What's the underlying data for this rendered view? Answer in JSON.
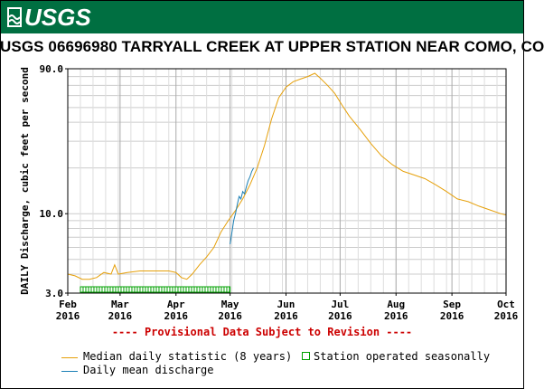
{
  "header": {
    "logo_text": "USGS",
    "brand_color": "#006f41",
    "title": "USGS 06696980 TARRYALL CREEK AT UPPER STATION NEAR COMO, CO"
  },
  "provisional_note": "---- Provisional Data Subject to Revision ----",
  "legend": {
    "median_label": "Median daily statistic (8 years)",
    "median_color": "#e6a00a",
    "daily_label": "Daily mean discharge",
    "daily_color": "#1a7fb5",
    "seasonal_label": "Station operated seasonally",
    "seasonal_color": "#00a000"
  },
  "chart_data": {
    "type": "line",
    "title": "USGS 06696980 TARRYALL CREEK AT UPPER STATION NEAR COMO, CO",
    "ylabel": "DAILY Discharge, cubic feet per second",
    "xlabel": "",
    "y_scale": "log",
    "ylim": [
      3.0,
      90.0
    ],
    "y_ticks": [
      "3.0",
      "10.0",
      "90.0"
    ],
    "x_ticks": [
      {
        "month": "Feb",
        "year": "2016",
        "date": "2016-02-01"
      },
      {
        "month": "Mar",
        "year": "2016",
        "date": "2016-03-01"
      },
      {
        "month": "Apr",
        "year": "2016",
        "date": "2016-04-01"
      },
      {
        "month": "May",
        "year": "2016",
        "date": "2016-05-01"
      },
      {
        "month": "Jun",
        "year": "2016",
        "date": "2016-06-01"
      },
      {
        "month": "Jul",
        "year": "2016",
        "date": "2016-07-01"
      },
      {
        "month": "Aug",
        "year": "2016",
        "date": "2016-08-01"
      },
      {
        "month": "Sep",
        "year": "2016",
        "date": "2016-09-01"
      },
      {
        "month": "Oct",
        "year": "2016",
        "date": "2016-10-01"
      }
    ],
    "xlim": [
      "2016-02-01",
      "2016-10-01"
    ],
    "grid": true,
    "series": [
      {
        "name": "Median daily statistic (8 years)",
        "color": "#e6a00a",
        "points": [
          [
            "2016-02-01",
            4.0
          ],
          [
            "2016-02-05",
            3.9
          ],
          [
            "2016-02-09",
            3.7
          ],
          [
            "2016-02-13",
            3.7
          ],
          [
            "2016-02-17",
            3.8
          ],
          [
            "2016-02-21",
            4.1
          ],
          [
            "2016-02-25",
            4.0
          ],
          [
            "2016-02-27",
            4.6
          ],
          [
            "2016-02-29",
            4.0
          ],
          [
            "2016-03-05",
            4.1
          ],
          [
            "2016-03-12",
            4.2
          ],
          [
            "2016-03-20",
            4.2
          ],
          [
            "2016-03-28",
            4.2
          ],
          [
            "2016-04-01",
            4.1
          ],
          [
            "2016-04-04",
            3.8
          ],
          [
            "2016-04-07",
            3.7
          ],
          [
            "2016-04-10",
            4.0
          ],
          [
            "2016-04-14",
            4.6
          ],
          [
            "2016-04-18",
            5.2
          ],
          [
            "2016-04-22",
            6.0
          ],
          [
            "2016-04-26",
            7.6
          ],
          [
            "2016-04-30",
            9.0
          ],
          [
            "2016-05-04",
            10.5
          ],
          [
            "2016-05-08",
            12.5
          ],
          [
            "2016-05-12",
            15.5
          ],
          [
            "2016-05-16",
            20.0
          ],
          [
            "2016-05-20",
            28.0
          ],
          [
            "2016-05-24",
            42.0
          ],
          [
            "2016-05-28",
            58.0
          ],
          [
            "2016-06-01",
            68.0
          ],
          [
            "2016-06-05",
            74.0
          ],
          [
            "2016-06-09",
            77.0
          ],
          [
            "2016-06-13",
            80.0
          ],
          [
            "2016-06-17",
            84.0
          ],
          [
            "2016-06-20",
            78.0
          ],
          [
            "2016-06-24",
            70.0
          ],
          [
            "2016-06-28",
            62.0
          ],
          [
            "2016-07-02",
            52.0
          ],
          [
            "2016-07-06",
            44.0
          ],
          [
            "2016-07-12",
            36.0
          ],
          [
            "2016-07-18",
            29.0
          ],
          [
            "2016-07-24",
            24.0
          ],
          [
            "2016-07-30",
            21.0
          ],
          [
            "2016-08-05",
            19.0
          ],
          [
            "2016-08-11",
            18.0
          ],
          [
            "2016-08-17",
            17.0
          ],
          [
            "2016-08-23",
            15.5
          ],
          [
            "2016-08-29",
            14.0
          ],
          [
            "2016-09-04",
            12.5
          ],
          [
            "2016-09-10",
            12.0
          ],
          [
            "2016-09-16",
            11.2
          ],
          [
            "2016-09-22",
            10.6
          ],
          [
            "2016-09-28",
            10.0
          ],
          [
            "2016-10-01",
            9.8
          ]
        ]
      },
      {
        "name": "Daily mean discharge",
        "color": "#1a7fb5",
        "points": [
          [
            "2016-05-01",
            6.3
          ],
          [
            "2016-05-02",
            7.5
          ],
          [
            "2016-05-03",
            9.0
          ],
          [
            "2016-05-04",
            10.0
          ],
          [
            "2016-05-05",
            11.5
          ],
          [
            "2016-05-06",
            13.0
          ],
          [
            "2016-05-07",
            12.5
          ],
          [
            "2016-05-08",
            14.0
          ],
          [
            "2016-05-09",
            13.5
          ],
          [
            "2016-05-10",
            15.0
          ],
          [
            "2016-05-11",
            16.5
          ],
          [
            "2016-05-12",
            17.5
          ],
          [
            "2016-05-13",
            19.0
          ],
          [
            "2016-05-14",
            20.0
          ]
        ]
      }
    ],
    "seasonal_operation": {
      "start": "2016-02-08",
      "end": "2016-05-01",
      "label": "Station operated seasonally"
    }
  }
}
